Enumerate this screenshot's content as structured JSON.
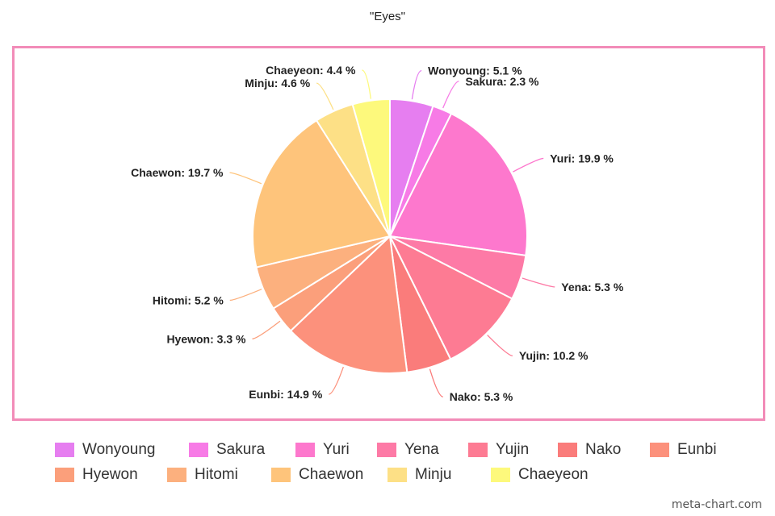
{
  "chart_data": {
    "type": "pie",
    "title": "\"Eyes\"",
    "legend_position": "bottom",
    "slices": [
      {
        "label": "Wonyoung",
        "value": 5.1,
        "display": "Wonyoung: 5.1 %",
        "color": "#e67ef0"
      },
      {
        "label": "Sakura",
        "value": 2.3,
        "display": "Sakura: 2.3 %",
        "color": "#f77be6"
      },
      {
        "label": "Yuri",
        "value": 19.9,
        "display": "Yuri: 19.9 %",
        "color": "#fd78cd"
      },
      {
        "label": "Yena",
        "value": 5.3,
        "display": "Yena: 5.3 %",
        "color": "#fd7aa6"
      },
      {
        "label": "Yujin",
        "value": 10.2,
        "display": "Yujin: 10.2 %",
        "color": "#fd7b93"
      },
      {
        "label": "Nako",
        "value": 5.3,
        "display": "Nako: 5.3 %",
        "color": "#fa7c7b"
      },
      {
        "label": "Eunbi",
        "value": 14.9,
        "display": "Eunbi: 14.9 %",
        "color": "#fc917c"
      },
      {
        "label": "Hyewon",
        "value": 3.3,
        "display": "Hyewon: 3.3 %",
        "color": "#fb9f7b"
      },
      {
        "label": "Hitomi",
        "value": 5.2,
        "display": "Hitomi: 5.2 %",
        "color": "#fcb07e"
      },
      {
        "label": "Chaewon",
        "value": 19.7,
        "display": "Chaewon: 19.7 %",
        "color": "#fec47b"
      },
      {
        "label": "Minju",
        "value": 4.6,
        "display": "Minju: 4.6 %",
        "color": "#fde086"
      },
      {
        "label": "Chaeyeon",
        "value": 4.4,
        "display": "Chaeyeon: 4.4 %",
        "color": "#fdf97c"
      }
    ]
  },
  "frame_color": "#f28cb8",
  "watermark": "meta-chart.com"
}
